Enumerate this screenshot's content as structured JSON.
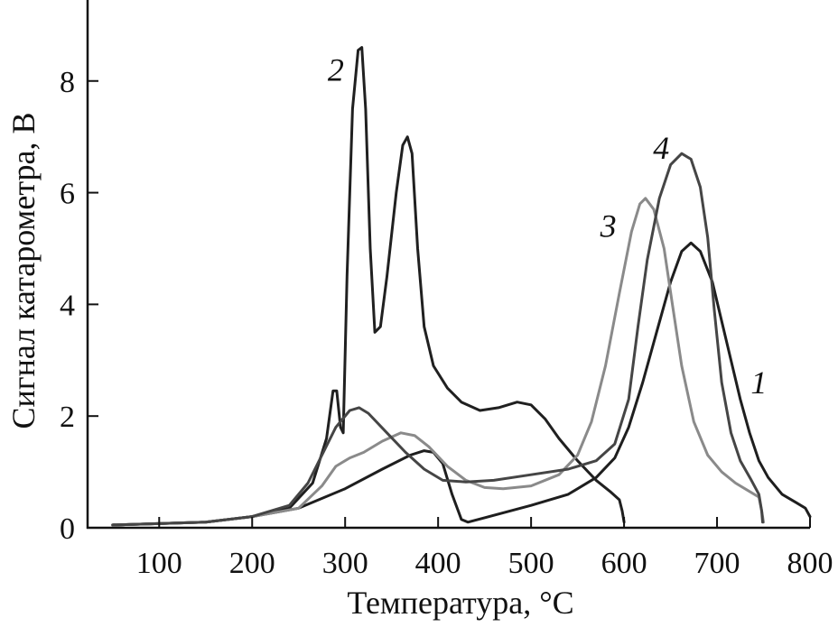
{
  "chart_data": {
    "type": "line",
    "title": "",
    "xlabel": "Температура, °C",
    "ylabel": "Сигнал катарометра, В",
    "xlim": [
      23,
      800
    ],
    "ylim": [
      0,
      9.45
    ],
    "xticks": [
      "100",
      "200",
      "300",
      "400",
      "500",
      "600",
      "700",
      "800"
    ],
    "yticks": [
      "0",
      "2",
      "4",
      "6",
      "8"
    ],
    "grid": false,
    "series": [
      {
        "label": "1",
        "color": "#1e1e1e",
        "label_at": [
          745,
          2.6
        ],
        "points": [
          [
            50,
            0.05
          ],
          [
            150,
            0.1
          ],
          [
            200,
            0.2
          ],
          [
            250,
            0.35
          ],
          [
            300,
            0.7
          ],
          [
            340,
            1.05
          ],
          [
            370,
            1.3
          ],
          [
            385,
            1.38
          ],
          [
            395,
            1.35
          ],
          [
            405,
            1.15
          ],
          [
            415,
            0.6
          ],
          [
            425,
            0.15
          ],
          [
            432,
            0.1
          ],
          [
            450,
            0.18
          ],
          [
            500,
            0.4
          ],
          [
            540,
            0.6
          ],
          [
            570,
            0.9
          ],
          [
            590,
            1.25
          ],
          [
            605,
            1.8
          ],
          [
            620,
            2.6
          ],
          [
            635,
            3.5
          ],
          [
            650,
            4.4
          ],
          [
            662,
            4.95
          ],
          [
            672,
            5.1
          ],
          [
            682,
            4.95
          ],
          [
            695,
            4.4
          ],
          [
            705,
            3.7
          ],
          [
            715,
            3.0
          ],
          [
            725,
            2.3
          ],
          [
            735,
            1.7
          ],
          [
            745,
            1.2
          ],
          [
            755,
            0.9
          ],
          [
            770,
            0.6
          ],
          [
            785,
            0.45
          ],
          [
            795,
            0.35
          ],
          [
            800,
            0.2
          ]
        ]
      },
      {
        "label": "2",
        "color": "#202020",
        "label_at": [
          290,
          8.2
        ],
        "points": [
          [
            50,
            0.05
          ],
          [
            150,
            0.1
          ],
          [
            200,
            0.2
          ],
          [
            240,
            0.35
          ],
          [
            265,
            0.8
          ],
          [
            280,
            1.6
          ],
          [
            287,
            2.45
          ],
          [
            291,
            2.45
          ],
          [
            295,
            1.8
          ],
          [
            298,
            1.7
          ],
          [
            302,
            4.5
          ],
          [
            308,
            7.5
          ],
          [
            314,
            8.55
          ],
          [
            318,
            8.6
          ],
          [
            322,
            7.5
          ],
          [
            327,
            5.0
          ],
          [
            332,
            3.5
          ],
          [
            338,
            3.6
          ],
          [
            345,
            4.5
          ],
          [
            355,
            6.0
          ],
          [
            362,
            6.85
          ],
          [
            367,
            7.0
          ],
          [
            372,
            6.7
          ],
          [
            378,
            5.0
          ],
          [
            385,
            3.6
          ],
          [
            395,
            2.9
          ],
          [
            410,
            2.5
          ],
          [
            425,
            2.25
          ],
          [
            445,
            2.1
          ],
          [
            465,
            2.15
          ],
          [
            485,
            2.25
          ],
          [
            500,
            2.2
          ],
          [
            515,
            1.95
          ],
          [
            530,
            1.6
          ],
          [
            550,
            1.2
          ],
          [
            570,
            0.85
          ],
          [
            585,
            0.65
          ],
          [
            595,
            0.5
          ],
          [
            598,
            0.3
          ],
          [
            600,
            0.1
          ]
        ]
      },
      {
        "label": "3",
        "color": "#8a8a8a",
        "label_at": [
          583,
          5.4
        ],
        "points": [
          [
            50,
            0.05
          ],
          [
            150,
            0.1
          ],
          [
            200,
            0.2
          ],
          [
            250,
            0.35
          ],
          [
            275,
            0.75
          ],
          [
            290,
            1.1
          ],
          [
            305,
            1.25
          ],
          [
            320,
            1.35
          ],
          [
            340,
            1.55
          ],
          [
            360,
            1.7
          ],
          [
            375,
            1.65
          ],
          [
            390,
            1.45
          ],
          [
            410,
            1.1
          ],
          [
            430,
            0.85
          ],
          [
            450,
            0.72
          ],
          [
            470,
            0.7
          ],
          [
            500,
            0.75
          ],
          [
            530,
            0.95
          ],
          [
            550,
            1.3
          ],
          [
            565,
            1.9
          ],
          [
            580,
            2.9
          ],
          [
            595,
            4.2
          ],
          [
            608,
            5.3
          ],
          [
            617,
            5.8
          ],
          [
            623,
            5.9
          ],
          [
            632,
            5.7
          ],
          [
            643,
            5.0
          ],
          [
            652,
            4.0
          ],
          [
            662,
            2.9
          ],
          [
            675,
            1.9
          ],
          [
            690,
            1.3
          ],
          [
            705,
            1.0
          ],
          [
            720,
            0.8
          ],
          [
            735,
            0.65
          ],
          [
            745,
            0.55
          ],
          [
            748,
            0.3
          ],
          [
            750,
            0.1
          ]
        ]
      },
      {
        "label": "4",
        "color": "#454545",
        "label_at": [
          640,
          6.8
        ],
        "points": [
          [
            50,
            0.05
          ],
          [
            150,
            0.1
          ],
          [
            200,
            0.2
          ],
          [
            240,
            0.4
          ],
          [
            260,
            0.8
          ],
          [
            275,
            1.3
          ],
          [
            290,
            1.8
          ],
          [
            305,
            2.1
          ],
          [
            315,
            2.15
          ],
          [
            325,
            2.05
          ],
          [
            345,
            1.7
          ],
          [
            365,
            1.35
          ],
          [
            385,
            1.05
          ],
          [
            405,
            0.85
          ],
          [
            430,
            0.82
          ],
          [
            460,
            0.85
          ],
          [
            500,
            0.95
          ],
          [
            540,
            1.05
          ],
          [
            570,
            1.2
          ],
          [
            590,
            1.5
          ],
          [
            605,
            2.3
          ],
          [
            615,
            3.6
          ],
          [
            625,
            4.8
          ],
          [
            638,
            5.9
          ],
          [
            650,
            6.5
          ],
          [
            662,
            6.7
          ],
          [
            672,
            6.6
          ],
          [
            682,
            6.1
          ],
          [
            690,
            5.2
          ],
          [
            697,
            3.9
          ],
          [
            705,
            2.6
          ],
          [
            715,
            1.7
          ],
          [
            725,
            1.2
          ],
          [
            737,
            0.85
          ],
          [
            745,
            0.6
          ],
          [
            748,
            0.3
          ],
          [
            749,
            0.1
          ]
        ]
      }
    ]
  }
}
